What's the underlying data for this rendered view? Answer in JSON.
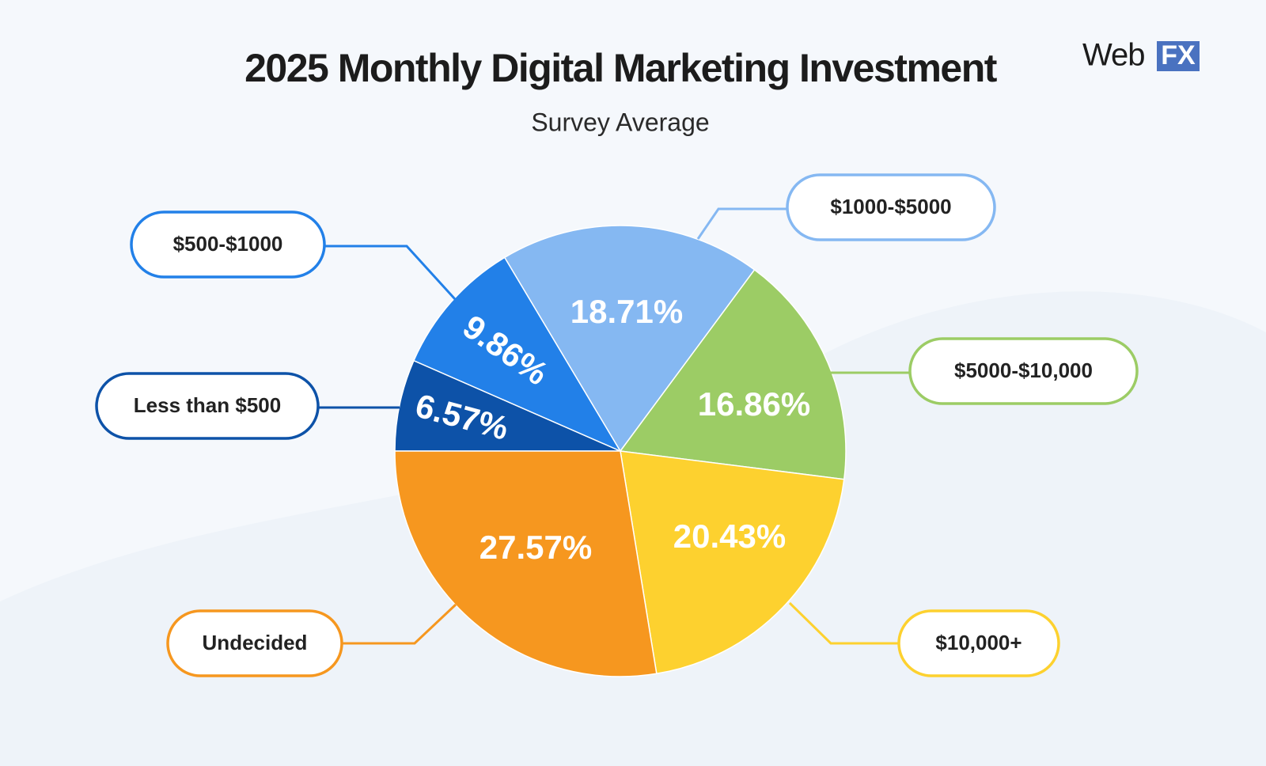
{
  "chart_data": {
    "type": "pie",
    "title": "2025 Monthly Digital Marketing Investment",
    "subtitle": "Survey Average",
    "categories": [
      "Less than $500",
      "$500-$1000",
      "$1000-$5000",
      "$5000-$10,000",
      "$10,000+",
      "Undecided"
    ],
    "values": [
      6.57,
      9.86,
      18.71,
      16.86,
      20.43,
      27.57
    ],
    "value_labels": [
      "6.57%",
      "9.86%",
      "18.71%",
      "16.86%",
      "20.43%",
      "27.57%"
    ],
    "colors": [
      "#0d52a8",
      "#2280e8",
      "#85b8f2",
      "#9ccc65",
      "#fdd12f",
      "#f6971f"
    ]
  },
  "logo": {
    "word": "Web",
    "badge": "FX"
  }
}
